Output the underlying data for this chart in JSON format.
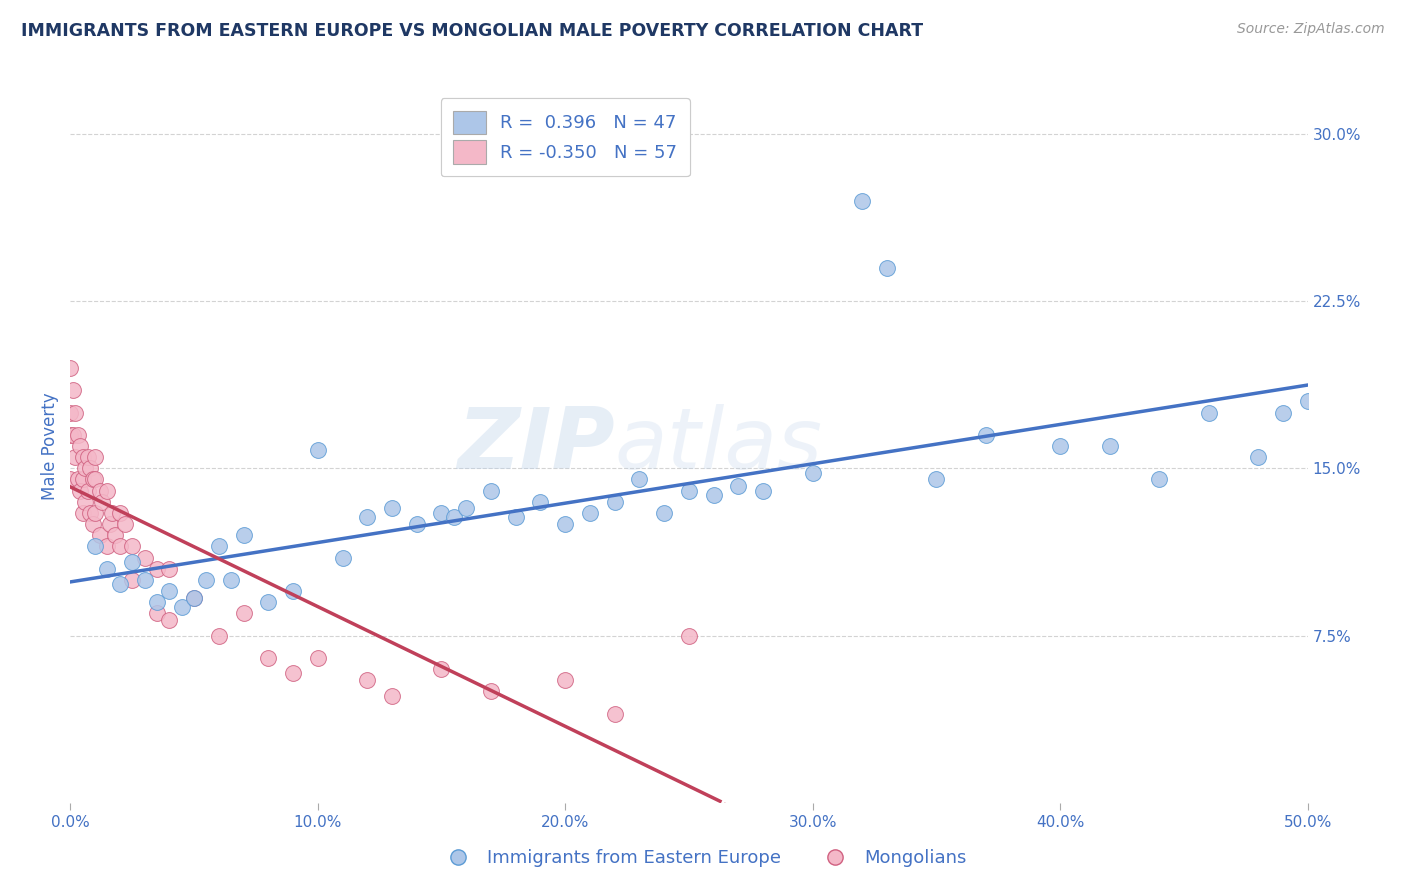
{
  "title": "IMMIGRANTS FROM EASTERN EUROPE VS MONGOLIAN MALE POVERTY CORRELATION CHART",
  "source": "Source: ZipAtlas.com",
  "ylabel": "Male Poverty",
  "watermark_zip": "ZIP",
  "watermark_atlas": "atlas",
  "xlim": [
    0.0,
    0.5
  ],
  "ylim": [
    0.0,
    0.32
  ],
  "xticks": [
    0.0,
    0.1,
    0.2,
    0.3,
    0.4,
    0.5
  ],
  "xtick_labels": [
    "0.0%",
    "10.0%",
    "20.0%",
    "30.0%",
    "40.0%",
    "50.0%"
  ],
  "yticks": [
    0.075,
    0.15,
    0.225,
    0.3
  ],
  "ytick_labels": [
    "7.5%",
    "15.0%",
    "22.5%",
    "30.0%"
  ],
  "series1_color": "#adc6e8",
  "series1_edge_color": "#5b9bd5",
  "series1_line_color": "#4472c4",
  "series1_label": "Immigrants from Eastern Europe",
  "series1_R": "0.396",
  "series1_N": "47",
  "series2_color": "#f4b8c8",
  "series2_edge_color": "#d06080",
  "series2_line_color": "#c0405a",
  "series2_label": "Mongolians",
  "series2_R": "-0.350",
  "series2_N": "57",
  "background_color": "#ffffff",
  "grid_color": "#c8c8c8",
  "title_color": "#1f3864",
  "axis_label_color": "#4472c4",
  "legend_box_color": "#4472c4",
  "blue_scatter_x": [
    0.01,
    0.015,
    0.02,
    0.025,
    0.03,
    0.035,
    0.04,
    0.045,
    0.05,
    0.055,
    0.06,
    0.065,
    0.07,
    0.08,
    0.09,
    0.1,
    0.11,
    0.12,
    0.13,
    0.14,
    0.15,
    0.155,
    0.16,
    0.17,
    0.18,
    0.19,
    0.2,
    0.21,
    0.22,
    0.23,
    0.24,
    0.25,
    0.26,
    0.27,
    0.28,
    0.3,
    0.32,
    0.33,
    0.35,
    0.37,
    0.4,
    0.42,
    0.44,
    0.46,
    0.48,
    0.49,
    0.5
  ],
  "blue_scatter_y": [
    0.115,
    0.105,
    0.098,
    0.108,
    0.1,
    0.09,
    0.095,
    0.088,
    0.092,
    0.1,
    0.115,
    0.1,
    0.12,
    0.09,
    0.095,
    0.158,
    0.11,
    0.128,
    0.132,
    0.125,
    0.13,
    0.128,
    0.132,
    0.14,
    0.128,
    0.135,
    0.125,
    0.13,
    0.135,
    0.145,
    0.13,
    0.14,
    0.138,
    0.142,
    0.14,
    0.148,
    0.27,
    0.24,
    0.145,
    0.165,
    0.16,
    0.16,
    0.145,
    0.175,
    0.155,
    0.175,
    0.18
  ],
  "pink_scatter_x": [
    0.0,
    0.0,
    0.0,
    0.0,
    0.001,
    0.001,
    0.002,
    0.002,
    0.003,
    0.003,
    0.004,
    0.004,
    0.005,
    0.005,
    0.005,
    0.006,
    0.006,
    0.007,
    0.007,
    0.008,
    0.008,
    0.009,
    0.009,
    0.01,
    0.01,
    0.01,
    0.012,
    0.012,
    0.013,
    0.015,
    0.015,
    0.016,
    0.017,
    0.018,
    0.02,
    0.02,
    0.022,
    0.025,
    0.025,
    0.03,
    0.035,
    0.035,
    0.04,
    0.04,
    0.05,
    0.06,
    0.07,
    0.08,
    0.09,
    0.1,
    0.12,
    0.13,
    0.15,
    0.17,
    0.2,
    0.22,
    0.25
  ],
  "pink_scatter_y": [
    0.195,
    0.175,
    0.165,
    0.145,
    0.185,
    0.165,
    0.175,
    0.155,
    0.165,
    0.145,
    0.16,
    0.14,
    0.155,
    0.145,
    0.13,
    0.15,
    0.135,
    0.155,
    0.14,
    0.15,
    0.13,
    0.145,
    0.125,
    0.155,
    0.145,
    0.13,
    0.14,
    0.12,
    0.135,
    0.14,
    0.115,
    0.125,
    0.13,
    0.12,
    0.115,
    0.13,
    0.125,
    0.115,
    0.1,
    0.11,
    0.105,
    0.085,
    0.105,
    0.082,
    0.092,
    0.075,
    0.085,
    0.065,
    0.058,
    0.065,
    0.055,
    0.048,
    0.06,
    0.05,
    0.055,
    0.04,
    0.075
  ]
}
